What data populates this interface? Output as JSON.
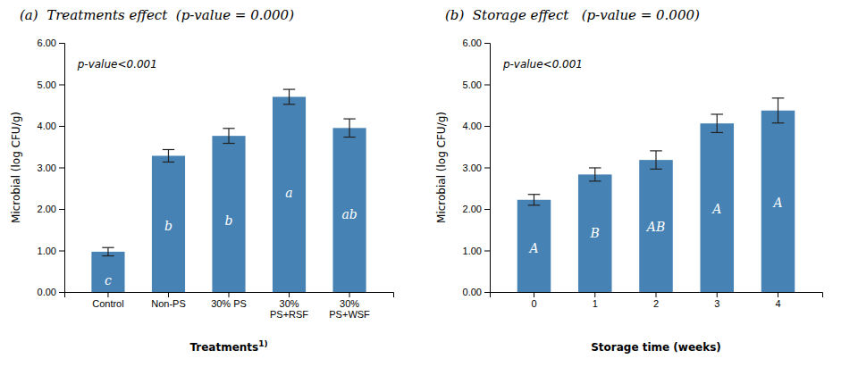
{
  "chart_data": [
    {
      "type": "bar",
      "title": "(a)  Treatments effect  (p-value = 0.000)",
      "categories": [
        "Control",
        "Non-PS",
        "30% PS",
        "30%\nPS+RSF",
        "30%\nPS+WSF"
      ],
      "values": [
        0.97,
        3.28,
        3.76,
        4.7,
        3.95
      ],
      "errors": [
        0.1,
        0.15,
        0.18,
        0.18,
        0.22
      ],
      "letters": [
        "c",
        "b",
        "b",
        "a",
        "ab"
      ],
      "letter_y": [
        0.28,
        1.6,
        1.72,
        2.38,
        1.88
      ],
      "xlabel": "Treatments",
      "xlabel_sup": "1)",
      "ylabel": "Microbial (log CFU/g)",
      "ylim": [
        0.0,
        6.0
      ],
      "yticks": [
        {
          "value": 0.0,
          "label": "0.00"
        },
        {
          "value": 1.0,
          "label": "1.00"
        },
        {
          "value": 2.0,
          "label": "2.00"
        },
        {
          "value": 3.0,
          "label": "3.00"
        },
        {
          "value": 4.0,
          "label": "4.00"
        },
        {
          "value": 5.0,
          "label": "5.00"
        },
        {
          "value": 6.0,
          "label": "6.00"
        }
      ],
      "annotation": "p-value<0.001",
      "color": "#4682b4"
    },
    {
      "type": "bar",
      "title": "(b)  Storage effect   (p-value = 0.000)",
      "categories": [
        "0",
        "1",
        "2",
        "3",
        "4"
      ],
      "values": [
        2.22,
        2.83,
        3.18,
        4.06,
        4.37
      ],
      "errors": [
        0.13,
        0.16,
        0.22,
        0.22,
        0.3
      ],
      "letters": [
        "A",
        "B",
        "AB",
        "A",
        "A"
      ],
      "letter_y": [
        1.05,
        1.42,
        1.58,
        2.0,
        2.15
      ],
      "xlabel": "Storage time (weeks)",
      "ylabel": "Microbial (log CFU/g)",
      "ylim": [
        0.0,
        6.0
      ],
      "yticks": [
        {
          "value": 0.0,
          "label": "0.00"
        },
        {
          "value": 1.0,
          "label": "1.00"
        },
        {
          "value": 2.0,
          "label": "2.00"
        },
        {
          "value": 3.0,
          "label": "3.00"
        },
        {
          "value": 4.0,
          "label": "4.00"
        },
        {
          "value": 5.0,
          "label": "5.00"
        },
        {
          "value": 6.0,
          "label": "6.00"
        }
      ],
      "annotation": "p-value<0.001",
      "color": "#4682b4"
    }
  ]
}
